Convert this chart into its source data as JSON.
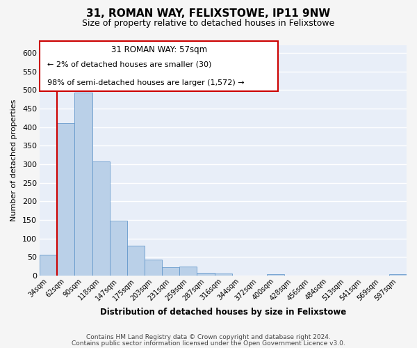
{
  "title": "31, ROMAN WAY, FELIXSTOWE, IP11 9NW",
  "subtitle": "Size of property relative to detached houses in Felixstowe",
  "xlabel": "Distribution of detached houses by size in Felixstowe",
  "ylabel": "Number of detached properties",
  "bar_values": [
    57,
    410,
    493,
    307,
    148,
    80,
    44,
    22,
    25,
    8,
    5,
    0,
    0,
    4,
    0,
    0,
    0,
    0,
    0,
    0,
    4
  ],
  "bin_labels": [
    "34sqm",
    "62sqm",
    "90sqm",
    "118sqm",
    "147sqm",
    "175sqm",
    "203sqm",
    "231sqm",
    "259sqm",
    "287sqm",
    "316sqm",
    "344sqm",
    "372sqm",
    "400sqm",
    "428sqm",
    "456sqm",
    "484sqm",
    "513sqm",
    "541sqm",
    "569sqm",
    "597sqm"
  ],
  "bar_color": "#bad0e8",
  "bar_edge_color": "#6699cc",
  "bg_color": "#e8eef8",
  "grid_color": "#ffffff",
  "annotation_box_color": "#ffffff",
  "annotation_border_color": "#cc0000",
  "property_line_color": "#cc0000",
  "annotation_title": "31 ROMAN WAY: 57sqm",
  "annotation_line1": "← 2% of detached houses are smaller (30)",
  "annotation_line2": "98% of semi-detached houses are larger (1,572) →",
  "ylim": [
    0,
    620
  ],
  "yticks": [
    0,
    50,
    100,
    150,
    200,
    250,
    300,
    350,
    400,
    450,
    500,
    550,
    600
  ],
  "footer1": "Contains HM Land Registry data © Crown copyright and database right 2024.",
  "footer2": "Contains public sector information licensed under the Open Government Licence v3.0.",
  "fig_bg": "#f5f5f5"
}
